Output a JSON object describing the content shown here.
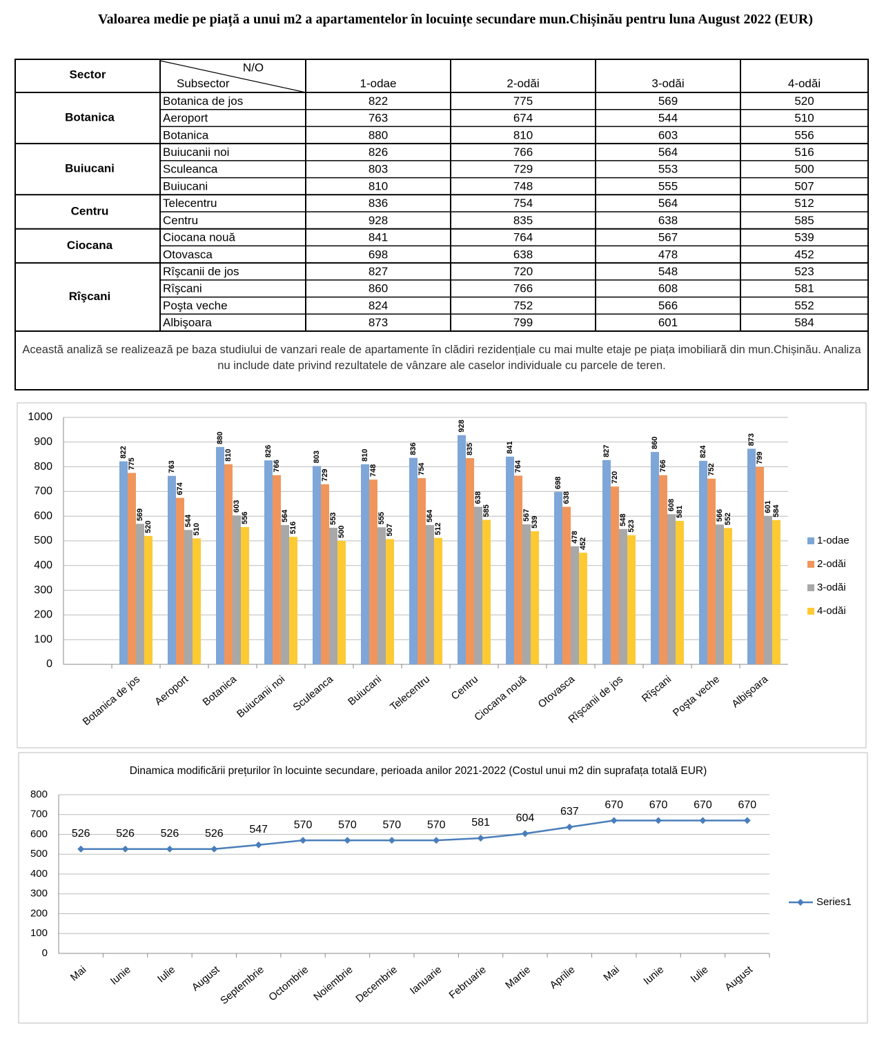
{
  "title": "Valoarea medie pe piață a unui m2 a apartamentelor în locuințe secundare  mun.Chișinău pentru luna August 2022 (EUR)",
  "table": {
    "header": {
      "sector": "Sector",
      "no": "N/O",
      "subsector": "Subsector",
      "columns": [
        "1-odae",
        "2-odăi",
        "3-odăi",
        "4-odăi"
      ]
    },
    "groups": [
      {
        "sector": "Botanica",
        "rows": [
          {
            "name": "Botanica de jos",
            "values": [
              822,
              775,
              569,
              520
            ]
          },
          {
            "name": "Aeroport",
            "values": [
              763,
              674,
              544,
              510
            ]
          },
          {
            "name": "Botanica",
            "values": [
              880,
              810,
              603,
              556
            ]
          }
        ]
      },
      {
        "sector": "Buiucani",
        "rows": [
          {
            "name": "Buiucanii noi",
            "values": [
              826,
              766,
              564,
              516
            ]
          },
          {
            "name": "Sculeanca",
            "values": [
              803,
              729,
              553,
              500
            ]
          },
          {
            "name": "Buiucani",
            "values": [
              810,
              748,
              555,
              507
            ]
          }
        ]
      },
      {
        "sector": "Centru",
        "rows": [
          {
            "name": "Telecentru",
            "values": [
              836,
              754,
              564,
              512
            ]
          },
          {
            "name": "Centru",
            "values": [
              928,
              835,
              638,
              585
            ]
          }
        ]
      },
      {
        "sector": "Ciocana",
        "rows": [
          {
            "name": "Ciocana nouă",
            "values": [
              841,
              764,
              567,
              539
            ]
          },
          {
            "name": "Otovasca",
            "values": [
              698,
              638,
              478,
              452
            ]
          }
        ]
      },
      {
        "sector": "Rîşcani",
        "rows": [
          {
            "name": "Rîşcanii de jos",
            "values": [
              827,
              720,
              548,
              523
            ]
          },
          {
            "name": "Rîşcani",
            "values": [
              860,
              766,
              608,
              581
            ]
          },
          {
            "name": "Poşta veche",
            "values": [
              824,
              752,
              566,
              552
            ]
          },
          {
            "name": "Albişoara",
            "values": [
              873,
              799,
              601,
              584
            ]
          }
        ]
      }
    ]
  },
  "note": "Această analiză se realizează pe baza studiului de vanzari reale de apartamente în clădiri rezidențiale cu mai multe etaje pe piața imobiliară din mun.Chișinău.  Analiza nu include date privind rezultatele de vânzare ale caselor individuale cu parcele de teren.",
  "chart_data": [
    {
      "type": "bar",
      "categories": [
        "Botanica de jos",
        "Aeroport",
        "Botanica",
        "Buiucanii noi",
        "Sculeanca",
        "Buiucani",
        "Telecentru",
        "Centru",
        "Ciocana nouă",
        "Otovasca",
        "Rîşcanii de jos",
        "Rîşcani",
        "Poşta veche",
        "Albişoara"
      ],
      "series": [
        {
          "name": "1-odae",
          "color": "#7ea6d8",
          "values": [
            822,
            763,
            880,
            826,
            803,
            810,
            836,
            928,
            841,
            698,
            827,
            860,
            824,
            873
          ]
        },
        {
          "name": "2-odăi",
          "color": "#f0965c",
          "values": [
            775,
            674,
            810,
            766,
            729,
            748,
            754,
            835,
            764,
            638,
            720,
            766,
            752,
            799
          ]
        },
        {
          "name": "3-odăi",
          "color": "#a8a8a8",
          "values": [
            569,
            544,
            603,
            564,
            553,
            555,
            564,
            638,
            567,
            478,
            548,
            608,
            566,
            601
          ]
        },
        {
          "name": "4-odăi",
          "color": "#fdca33",
          "values": [
            520,
            510,
            556,
            516,
            500,
            507,
            512,
            585,
            539,
            452,
            523,
            581,
            552,
            584
          ]
        }
      ],
      "ylim": [
        0,
        1000
      ],
      "yticks": [
        0,
        100,
        200,
        300,
        400,
        500,
        600,
        700,
        800,
        900,
        1000
      ],
      "grid": true,
      "legend": "right"
    },
    {
      "type": "line",
      "title": "Dinamica modificării prețurilor în locuinte secundare, perioada anilor 2021-2022 (Costul unui m2 din suprafața totală EUR)",
      "categories": [
        "Mai",
        "Iunie",
        "Iulie",
        "August",
        "Septembrie",
        "Octombrie",
        "Noiembrie",
        "Decembrie",
        "Ianuarie",
        "Februarie",
        "Martie",
        "Aprilie",
        "Mai",
        "Iunie",
        "Iulie",
        "August"
      ],
      "series": [
        {
          "name": "Series1",
          "color": "#4a7ebb",
          "values": [
            526,
            526,
            526,
            526,
            547,
            570,
            570,
            570,
            570,
            581,
            604,
            637,
            670,
            670,
            670,
            670
          ]
        }
      ],
      "ylim": [
        0,
        800
      ],
      "yticks": [
        0,
        100,
        200,
        300,
        400,
        500,
        600,
        700,
        800
      ],
      "grid": true,
      "legend": "right"
    }
  ]
}
